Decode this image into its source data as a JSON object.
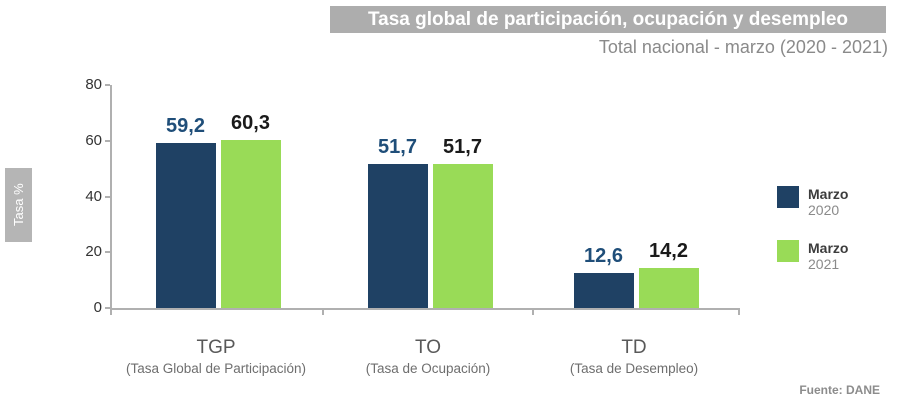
{
  "chart_data": {
    "type": "bar",
    "title": "Tasa global de participación, ocupación y desempleo",
    "subtitle": "Total nacional - marzo (2020 - 2021)",
    "ylabel": "Tasa %",
    "xlabel": "",
    "ylim": [
      0,
      80
    ],
    "yticks": [
      0,
      20,
      40,
      60,
      80
    ],
    "grid": false,
    "legend_position": "right",
    "categories": [
      "TGP",
      "TO",
      "TD"
    ],
    "category_sublabels": [
      "(Tasa Global de Participación)",
      "(Tasa de Ocupación)",
      "(Tasa de Desempleo)"
    ],
    "series": [
      {
        "name": "Marzo 2020",
        "color": "#1f4164",
        "values": [
          59.2,
          51.7,
          12.6
        ],
        "value_labels": [
          "59,2",
          "51,7",
          "12,6"
        ],
        "label_color": "#1f4e79"
      },
      {
        "name": "Marzo 2021",
        "color": "#99db57",
        "values": [
          60.3,
          51.7,
          14.2
        ],
        "value_labels": [
          "60,3",
          "51,7",
          "14,2"
        ],
        "label_color": "#1a1a1a"
      }
    ],
    "source": "Fuente: DANE"
  },
  "legend": {
    "items": [
      {
        "label": "Marzo",
        "year": "2020",
        "color": "#1f4164"
      },
      {
        "label": "Marzo",
        "year": "2021",
        "color": "#99db57"
      }
    ]
  },
  "colors": {
    "title_bar_background": "#adadad",
    "title_text": "#ffffff",
    "subtitle_text": "#8a8a8a",
    "axis_line": "#b0b0b0",
    "y_axis_title_background": "#b5b5b5"
  }
}
